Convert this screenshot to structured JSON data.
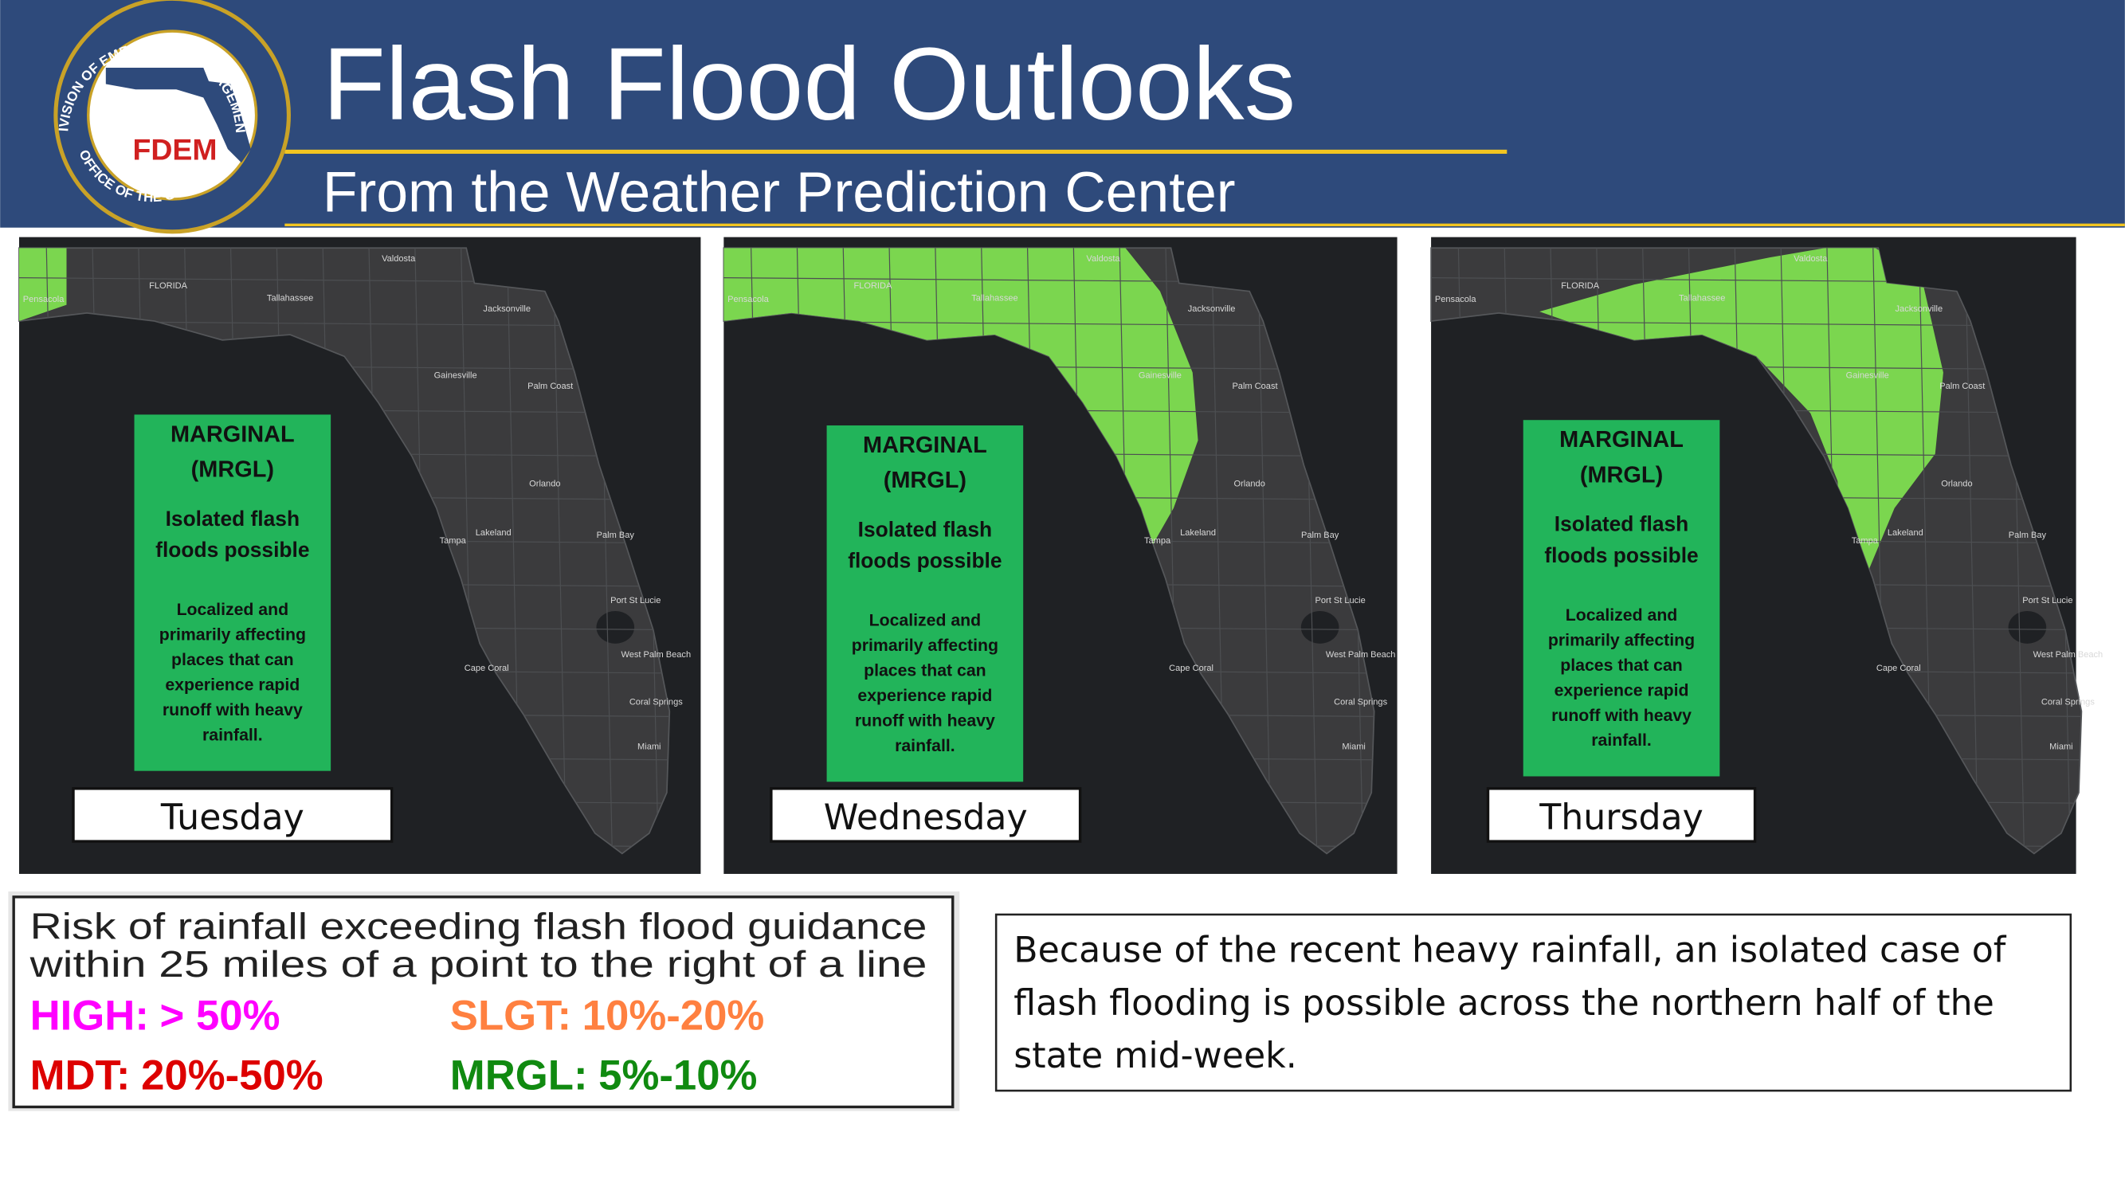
{
  "header": {
    "title": "Flash Flood Outlooks",
    "subtitle": "From the Weather Prediction Center",
    "logo": {
      "top_arc": "DIVISION OF EMERGENCY MANAGEMENT",
      "name": "FDEM",
      "bottom_arc": "OFFICE OF THE GOVERNOR"
    }
  },
  "map_labels": [
    "Valdosta",
    "Tallahassee",
    "Pensacola",
    "FLORIDA",
    "Jacksonville",
    "Gainesville",
    "Palm Coast",
    "Orlando",
    "Tampa",
    "Lakeland",
    "Palm Bay",
    "Port St Lucie",
    "Cape Coral",
    "West Palm Beach",
    "Coral Springs",
    "Miami"
  ],
  "panels": [
    {
      "day": "Tuesday",
      "risk": {
        "level": "MARGINAL",
        "code": "(MRGL)",
        "headline": [
          "Isolated flash",
          "floods possible"
        ],
        "detail": [
          "Localized and",
          "primarily affecting",
          "places that can",
          "experience rapid",
          "runoff with heavy",
          "rainfall."
        ]
      }
    },
    {
      "day": "Wednesday",
      "risk": {
        "level": "MARGINAL",
        "code": "(MRGL)",
        "headline": [
          "Isolated flash",
          "floods possible"
        ],
        "detail": [
          "Localized and",
          "primarily affecting",
          "places that can",
          "experience rapid",
          "runoff with heavy",
          "rainfall."
        ]
      }
    },
    {
      "day": "Thursday",
      "risk": {
        "level": "MARGINAL",
        "code": "(MRGL)",
        "headline": [
          "Isolated flash",
          "floods possible"
        ],
        "detail": [
          "Localized and",
          "primarily affecting",
          "places that can",
          "experience rapid",
          "runoff with heavy",
          "rainfall."
        ]
      }
    }
  ],
  "legend": {
    "title": [
      "Risk of rainfall exceeding flash flood guidance",
      "within 25 miles of a point to the right of a line"
    ],
    "items": [
      {
        "label": "HIGH:",
        "range": "> 50%",
        "color": "#ff00ff"
      },
      {
        "label": "SLGT:",
        "range": "10%-20%",
        "color": "#ff8040"
      },
      {
        "label": "MDT:",
        "range": "20%-50%",
        "color": "#dd0000"
      },
      {
        "label": "MRGL:",
        "range": "5%-10%",
        "color": "#108a10"
      }
    ]
  },
  "note": [
    "Because of the recent heavy rainfall, an isolated case of",
    "flash flooding is possible across the northern half of the",
    "state mid-week."
  ]
}
